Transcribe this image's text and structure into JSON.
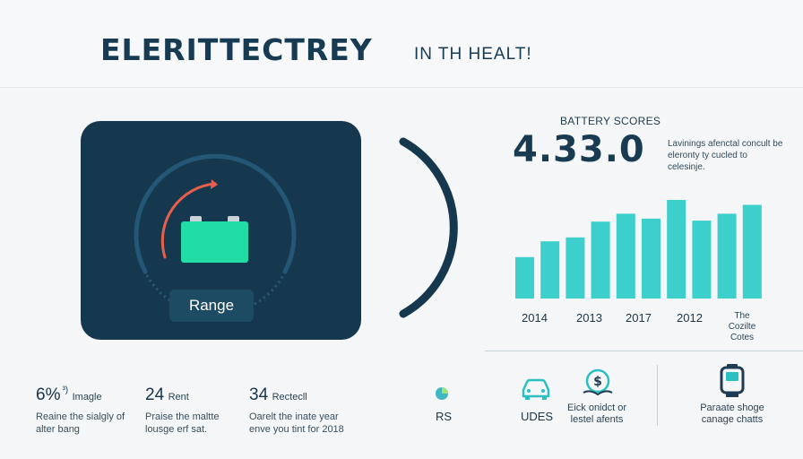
{
  "header": {
    "title": "ELERITTECTREY",
    "subtitle": "IN TH HEALT!"
  },
  "card": {
    "range_label": "Range"
  },
  "scores": {
    "label": "BATTERY SCORES",
    "value": "4.33.0",
    "description": "Lavinings afenctal concult be eleronty ty cucled to celesinje."
  },
  "chart_data": {
    "type": "bar",
    "categories": [
      "",
      "",
      "",
      "",
      "",
      "",
      "",
      "",
      "",
      ""
    ],
    "values": [
      42,
      58,
      62,
      78,
      86,
      81,
      100,
      79,
      86,
      95
    ],
    "tick_labels": [
      "2014",
      "2013",
      "2017",
      "2012"
    ],
    "last_tick_label": "The Cozilte Cotes",
    "title": "",
    "xlabel": "",
    "ylabel": "",
    "bar_color": "#3ccfcb"
  },
  "stats": [
    {
      "num": "6%",
      "sup": "³)",
      "label": "Imagle",
      "desc": "Reaine the sialgly of alter bang"
    },
    {
      "num": "24",
      "sup": "",
      "label": "Rent",
      "desc": "Praise the maltte lousge erf sat."
    },
    {
      "num": "34",
      "sup": "",
      "label": "Rectecll",
      "desc": "Oarelt the inate year enve you tint for 2018"
    }
  ],
  "features": {
    "rs": "RS",
    "udes": "UDES",
    "cost": "Eick onidct or lestel afents",
    "charge": "Paraate shoge canage chatts"
  },
  "colors": {
    "navy": "#15384f",
    "teal": "#3ccfcb",
    "green": "#22dca6",
    "accent": "#e8604c"
  }
}
